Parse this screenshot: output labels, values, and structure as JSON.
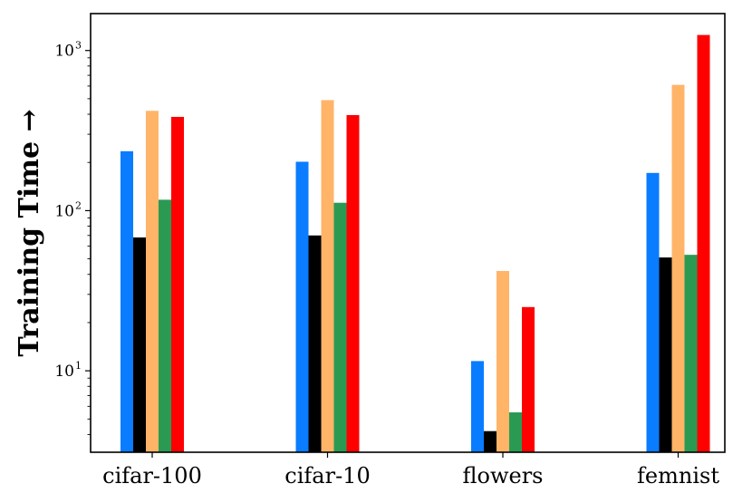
{
  "chart_data": {
    "type": "bar",
    "title": "",
    "xlabel": "",
    "ylabel": "Training Time →",
    "yscale": "log",
    "ylim": [
      3.1,
      1700
    ],
    "grid": false,
    "categories": [
      "cifar-100",
      "cifar-10",
      "flowers",
      "femnist"
    ],
    "series": [
      {
        "color": "#0a7cff",
        "values": [
          235,
          202,
          11.5,
          172
        ]
      },
      {
        "color": "#000000",
        "values": [
          68,
          70,
          4.2,
          51
        ]
      },
      {
        "color": "#ffb468",
        "values": [
          420,
          490,
          42,
          610
        ]
      },
      {
        "color": "#2a9a53",
        "values": [
          117,
          112,
          5.5,
          53
        ]
      },
      {
        "color": "#ff0000",
        "values": [
          385,
          395,
          25,
          1250
        ]
      }
    ],
    "y_ticks": [
      {
        "value": 10,
        "base": "10",
        "exp": "1"
      },
      {
        "value": 100,
        "base": "10",
        "exp": "2"
      },
      {
        "value": 1000,
        "base": "10",
        "exp": "3"
      }
    ]
  }
}
